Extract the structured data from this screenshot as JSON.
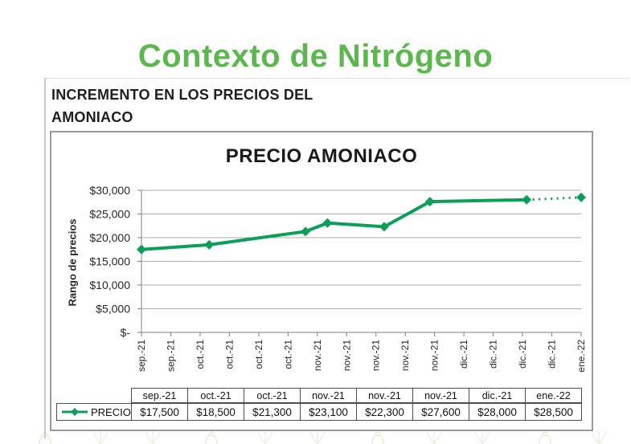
{
  "slide": {
    "title": "Contexto de Nitrógeno",
    "title_color": "#5cb84e",
    "heading_line1": "INCREMENTO EN LOS PRECIOS DEL",
    "heading_line2": "AMONIACO"
  },
  "chart_data": {
    "type": "line",
    "title": "PRECIO AMONIACO",
    "ylabel": "Rango de precios",
    "xlabel": "",
    "ylim": [
      0,
      30000
    ],
    "grid": true,
    "legend_position": "bottom-table",
    "y_ticks": [
      {
        "value": 30000,
        "label": "$30,000"
      },
      {
        "value": 25000,
        "label": "$25,000"
      },
      {
        "value": 20000,
        "label": "$20,000"
      },
      {
        "value": 15000,
        "label": "$15,000"
      },
      {
        "value": 10000,
        "label": "$10,000"
      },
      {
        "value": 5000,
        "label": "$5,000"
      },
      {
        "value": 0,
        "label": "$-"
      }
    ],
    "x_tick_labels": [
      "sep.-21",
      "sep.-21",
      "oct.-21",
      "oct.-21",
      "oct.-21",
      "oct.-21",
      "nov.-21",
      "nov.-21",
      "nov.-21",
      "nov.-21",
      "nov.-21",
      "dic.-21",
      "dic.-21",
      "dic.-21",
      "dic.-21",
      "ene.-22"
    ],
    "series": [
      {
        "name": "PRECIO",
        "color": "#0d9e58",
        "marker": "diamond",
        "categories": [
          "sep.-21",
          "oct.-21",
          "oct.-21",
          "nov.-21",
          "nov.-21",
          "nov.-21",
          "dic.-21",
          "ene.-22"
        ],
        "values": [
          17500,
          18500,
          21300,
          23100,
          22300,
          27600,
          28000,
          28500
        ],
        "x_frac": [
          0,
          0.154,
          0.373,
          0.423,
          0.552,
          0.656,
          0.876,
          1.0
        ],
        "last_segment_dotted": true
      }
    ]
  },
  "data_table": {
    "legend_label": "PRECIO",
    "columns": [
      "sep.-21",
      "oct.-21",
      "oct.-21",
      "nov.-21",
      "nov.-21",
      "nov.-21",
      "dic.-21",
      "ene.-22"
    ],
    "values": [
      "$17,500",
      "$18,500",
      "$21,300",
      "$23,100",
      "$22,300",
      "$27,600",
      "$28,000",
      "$28,500"
    ]
  }
}
